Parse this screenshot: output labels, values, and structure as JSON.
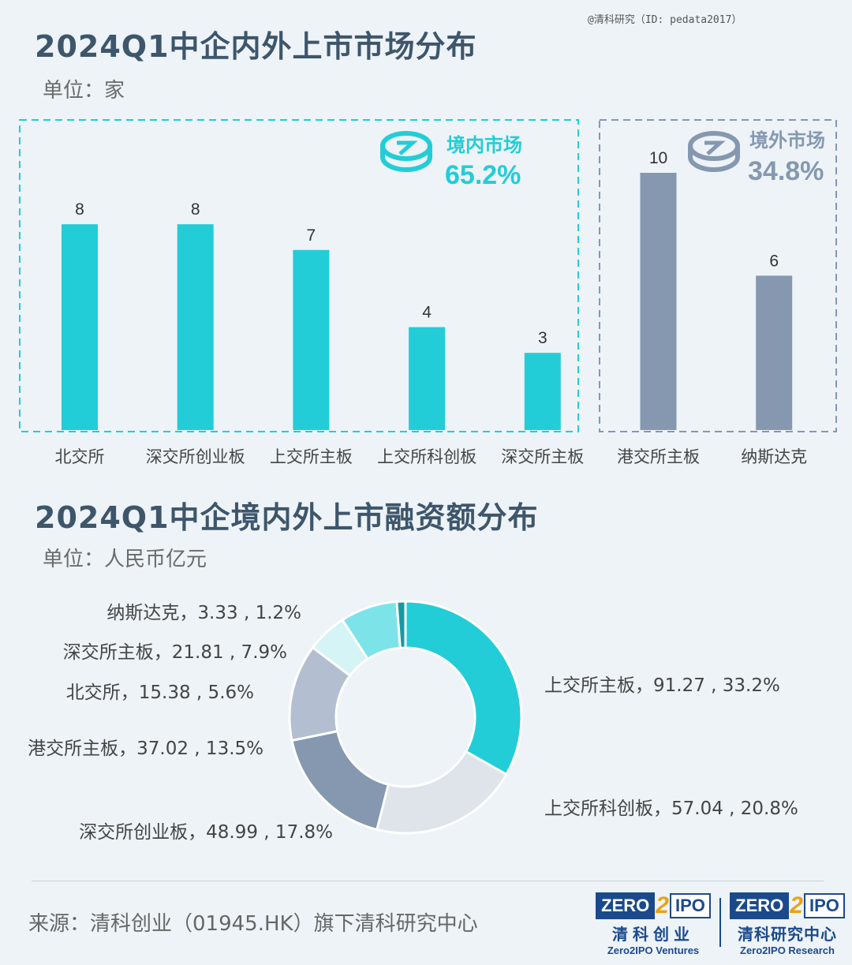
{
  "watermark": "@清科研究（ID: pedata2017）",
  "chart1": {
    "title": "2024Q1中企内外上市市场分布",
    "unit": "单位：家",
    "domestic_label": "境内市场",
    "domestic_pct": "65.2%",
    "foreign_label": "境外市场",
    "foreign_pct": "34.8%"
  },
  "chart2": {
    "title": "2024Q1中企境内外上市融资额分布",
    "unit": "单位：人民币亿元"
  },
  "colors": {
    "domestic": "#22cdd7",
    "foreign": "#8598b0",
    "title": "#3e566b",
    "background": "#edf3f7"
  },
  "chart_data": [
    {
      "type": "bar",
      "categories": [
        "北交所",
        "深交所创业板",
        "上交所主板",
        "上交所科创板",
        "深交所主板",
        "港交所主板",
        "纳斯达克"
      ],
      "values": [
        8,
        8,
        7,
        4,
        3,
        10,
        6
      ],
      "groups": [
        "domestic",
        "domestic",
        "domestic",
        "domestic",
        "domestic",
        "foreign",
        "foreign"
      ],
      "ylim": [
        0,
        10
      ]
    },
    {
      "type": "pie",
      "donut": true,
      "slices": [
        {
          "label": "上交所主板",
          "value": 91.27,
          "pct": "33.2%",
          "color": "#22cdd7"
        },
        {
          "label": "上交所科创板",
          "value": 57.04,
          "pct": "20.8%",
          "color": "#dfe3ea"
        },
        {
          "label": "深交所创业板",
          "value": 48.99,
          "pct": "17.8%",
          "color": "#8598b0"
        },
        {
          "label": "港交所主板",
          "value": 37.02,
          "pct": "13.5%",
          "color": "#b3bfd0"
        },
        {
          "label": "北交所",
          "value": 15.38,
          "pct": "5.6%",
          "color": "#d4f4f6"
        },
        {
          "label": "深交所主板",
          "value": 21.81,
          "pct": "7.9%",
          "color": "#7ce3e9"
        },
        {
          "label": "纳斯达克",
          "value": 3.33,
          "pct": "1.2%",
          "color": "#159aa3"
        }
      ]
    }
  ],
  "footer": {
    "source": "来源：清科创业（01945.HK）旗下清科研究中心",
    "logo1_zero": "ZERO",
    "logo1_two": "2",
    "logo1_ipo": "IPO",
    "logo1_cn": "清科创业",
    "logo1_en": "Zero2IPO Ventures",
    "logo2_zero": "ZERO",
    "logo2_two": "2",
    "logo2_ipo": "IPO",
    "logo2_cn": "清科研究中心",
    "logo2_en": "Zero2IPO Research"
  }
}
